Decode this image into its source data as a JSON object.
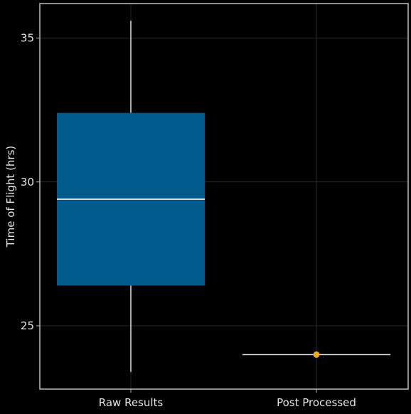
{
  "chart_data": {
    "type": "box",
    "title": "",
    "xlabel": "",
    "ylabel": "Time of Flight (hrs)",
    "ylim": [
      22.8,
      36.2
    ],
    "yticks": [
      25,
      30,
      35
    ],
    "grid": true,
    "categories": [
      "Raw Results",
      "Post Processed"
    ],
    "boxes": [
      {
        "category": "Raw Results",
        "whisker_low": 23.4,
        "q1": 26.4,
        "median": 29.4,
        "q3": 32.4,
        "whisker_high": 35.6
      },
      {
        "category": "Post Processed",
        "whisker_low": 24.0,
        "q1": 24.0,
        "median": 24.0,
        "q3": 24.0,
        "whisker_high": 24.0,
        "point": 24.0
      }
    ],
    "colors": {
      "background": "#000000",
      "box_fill": "#005a8c",
      "median_line": "#d8d8d8",
      "whisker": "#e6e6e6",
      "point": "#f0a81e",
      "grid": "#2a2a2a",
      "axis": "#bdbdbd"
    }
  }
}
